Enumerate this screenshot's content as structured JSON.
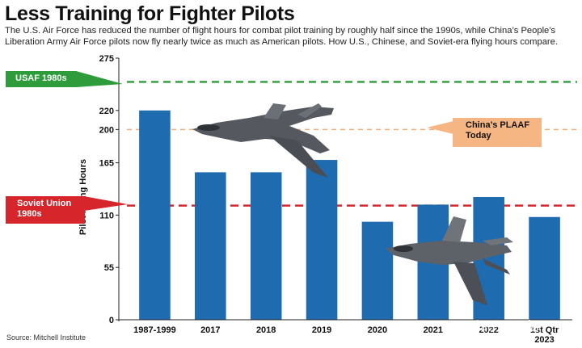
{
  "title": "Less Training for Fighter Pilots",
  "subtitle": "The U.S. Air Force has reduced the number of flight hours for combat pilot training by roughly half since the 1990s, while China’s People’s Liberation Army Air Force pilots now fly nearly twice as much as American pilots. How U.S., Chinese, and Soviet-era flying hours compare.",
  "source": "Source: Mitchell Institute",
  "watermark": "知乎 @飞扬",
  "colors": {
    "bar": "#1f6bb0",
    "usaf": "#2e9c3a",
    "plaaf": "#f3b07d",
    "soviet": "#d6252b"
  },
  "annotations": {
    "usaf": {
      "label": "USAF 1980s",
      "value": 250
    },
    "plaaf": {
      "label_line1": "China’s PLAAF",
      "label_line2": "Today",
      "value": 200
    },
    "soviet": {
      "label_line1": "Soviet Union",
      "label_line2": "1980s",
      "value": 120
    }
  },
  "chart_data": {
    "type": "bar",
    "ylabel": "Pilot Flying Hours",
    "yticks": [
      0,
      55,
      110,
      165,
      200,
      220,
      275
    ],
    "ylim": [
      0,
      275
    ],
    "categories": [
      "1987-1999",
      "2017",
      "2018",
      "2019",
      "2020",
      "2021",
      "2022",
      [
        "1st Qtr",
        "2023"
      ]
    ],
    "values": [
      220,
      155,
      155,
      168,
      103,
      121,
      129,
      108
    ],
    "grid": false,
    "reference_lines": [
      {
        "label": "USAF 1980s",
        "value": 250,
        "color": "#2e9c3a"
      },
      {
        "label": "China’s PLAAF Today",
        "value": 200,
        "color": "#f3b07d"
      },
      {
        "label": "Soviet Union 1980s",
        "value": 120,
        "color": "#d6252b"
      }
    ]
  }
}
